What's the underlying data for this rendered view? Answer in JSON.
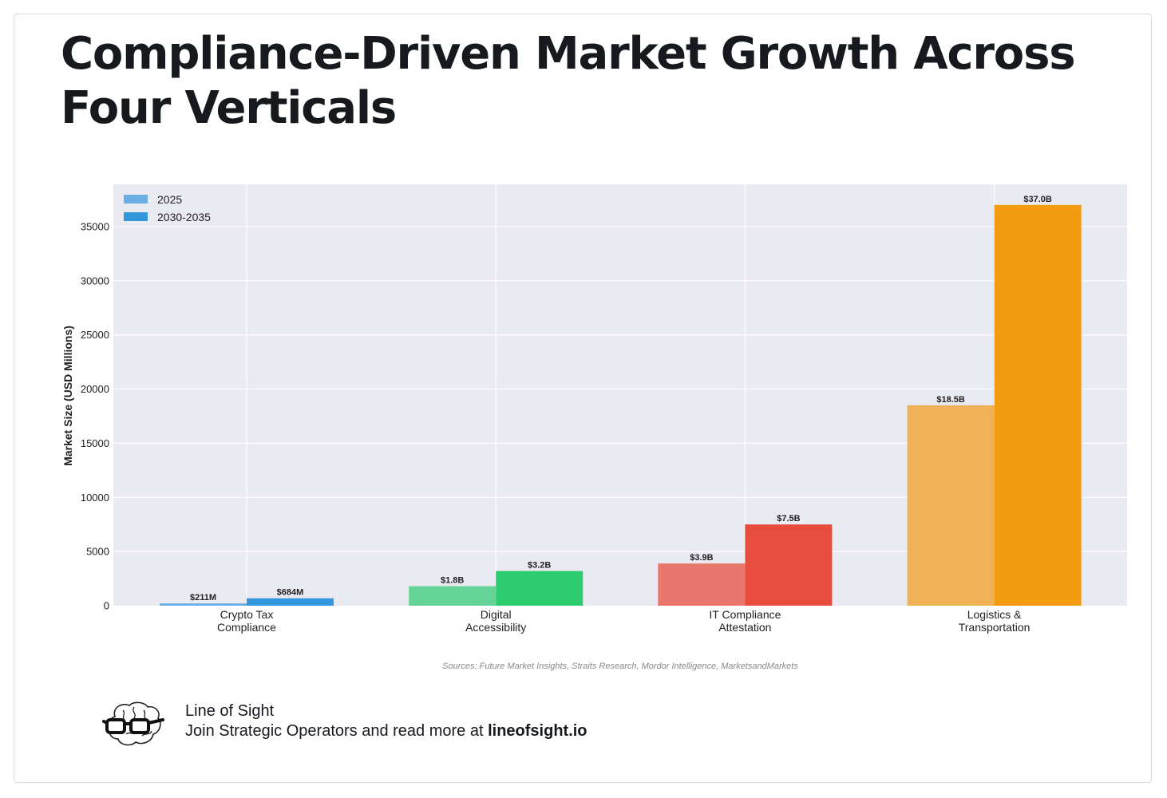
{
  "title": "Compliance-Driven Market Growth Across Four Verticals",
  "chart_data": {
    "type": "bar",
    "categories": [
      [
        "Crypto Tax",
        "Compliance"
      ],
      [
        "Digital",
        "Accessibility"
      ],
      [
        "IT Compliance",
        "Attestation"
      ],
      [
        "Logistics &",
        "Transportation"
      ]
    ],
    "series": [
      {
        "name": "2025",
        "values": [
          211,
          1800,
          3900,
          18500
        ],
        "labels": [
          "$211M",
          "$1.8B",
          "$3.9B",
          "$18.5B"
        ]
      },
      {
        "name": "2030-2035",
        "values": [
          684,
          3200,
          7500,
          37000
        ],
        "labels": [
          "$684M",
          "$3.2B",
          "$7.5B",
          "$37.0B"
        ]
      }
    ],
    "colors": {
      "2025": [
        "#6aaee3",
        "#66d497",
        "#e8766d",
        "#efb257"
      ],
      "2030-2035": [
        "#3597db",
        "#2ecc71",
        "#e74c3c",
        "#f39c12"
      ]
    },
    "legend_colors": [
      "#6aaee3",
      "#3597db"
    ],
    "ylabel": "Market Size (USD Millions)",
    "xlabel": "",
    "ylim": [
      0,
      38900
    ],
    "yticks": [
      0,
      5000,
      10000,
      15000,
      20000,
      25000,
      30000,
      35000
    ],
    "grid": true,
    "legend_position": "top-left",
    "source": "Sources: Future Market Insights, Straits Research, Mordor Intelligence, MarketsandMarkets"
  },
  "footer": {
    "brand": "Line of Sight",
    "cta_text": "Join Strategic Operators and read more at",
    "cta_link": "lineofsight.io",
    "logo_icon": "brain-glasses-icon"
  }
}
